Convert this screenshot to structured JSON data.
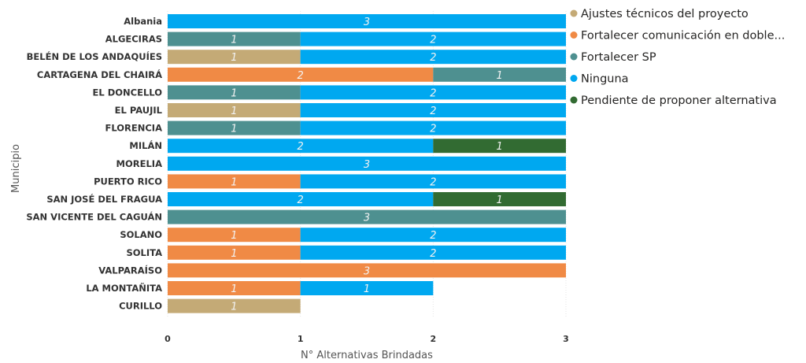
{
  "chart_data": {
    "type": "bar",
    "orientation": "horizontal",
    "stacked": true,
    "title": "",
    "xlabel": "N° Alternativas Brindadas",
    "ylabel": "Municipio",
    "xlim": [
      0,
      3
    ],
    "xticks": [
      "0",
      "1",
      "2",
      "3"
    ],
    "grid": true,
    "legend_position": "right",
    "categories": [
      "Albania",
      "ALGECIRAS",
      "BELÉN DE LOS ANDAQUÍES",
      "CARTAGENA DEL CHAIRÁ",
      "EL DONCELLO",
      "EL PAUJIL",
      "FLORENCIA",
      "MILÁN",
      "MORELIA",
      "PUERTO RICO",
      "SAN JOSÉ DEL FRAGUA",
      "SAN VICENTE DEL CAGUÁN",
      "SOLANO",
      "SOLITA",
      "VALPARAÍSO",
      "LA MONTAÑITA",
      "CURILLO"
    ],
    "series": [
      {
        "name": "Ajustes técnicos del proyecto",
        "color": "#C4AA76",
        "values": [
          0,
          0,
          1,
          0,
          0,
          1,
          0,
          0,
          0,
          0,
          0,
          0,
          0,
          0,
          0,
          0,
          1
        ]
      },
      {
        "name": "Fortalecer comunicación en doble...",
        "color": "#F08A45",
        "values": [
          0,
          0,
          0,
          2,
          0,
          0,
          0,
          0,
          0,
          1,
          0,
          0,
          1,
          1,
          3,
          1,
          0
        ]
      },
      {
        "name": "Fortalecer SP",
        "color": "#4E9090",
        "values": [
          0,
          1,
          0,
          1,
          1,
          0,
          1,
          0,
          0,
          0,
          0,
          3,
          0,
          0,
          0,
          0,
          0
        ]
      },
      {
        "name": "Ninguna",
        "color": "#00A8F0",
        "values": [
          3,
          2,
          2,
          0,
          2,
          2,
          2,
          2,
          3,
          2,
          2,
          0,
          2,
          2,
          0,
          1,
          0
        ]
      },
      {
        "name": "Pendiente de proponer alternativa",
        "color": "#326B32",
        "values": [
          0,
          0,
          0,
          0,
          0,
          0,
          0,
          1,
          0,
          0,
          1,
          0,
          0,
          0,
          0,
          0,
          0
        ]
      }
    ]
  }
}
